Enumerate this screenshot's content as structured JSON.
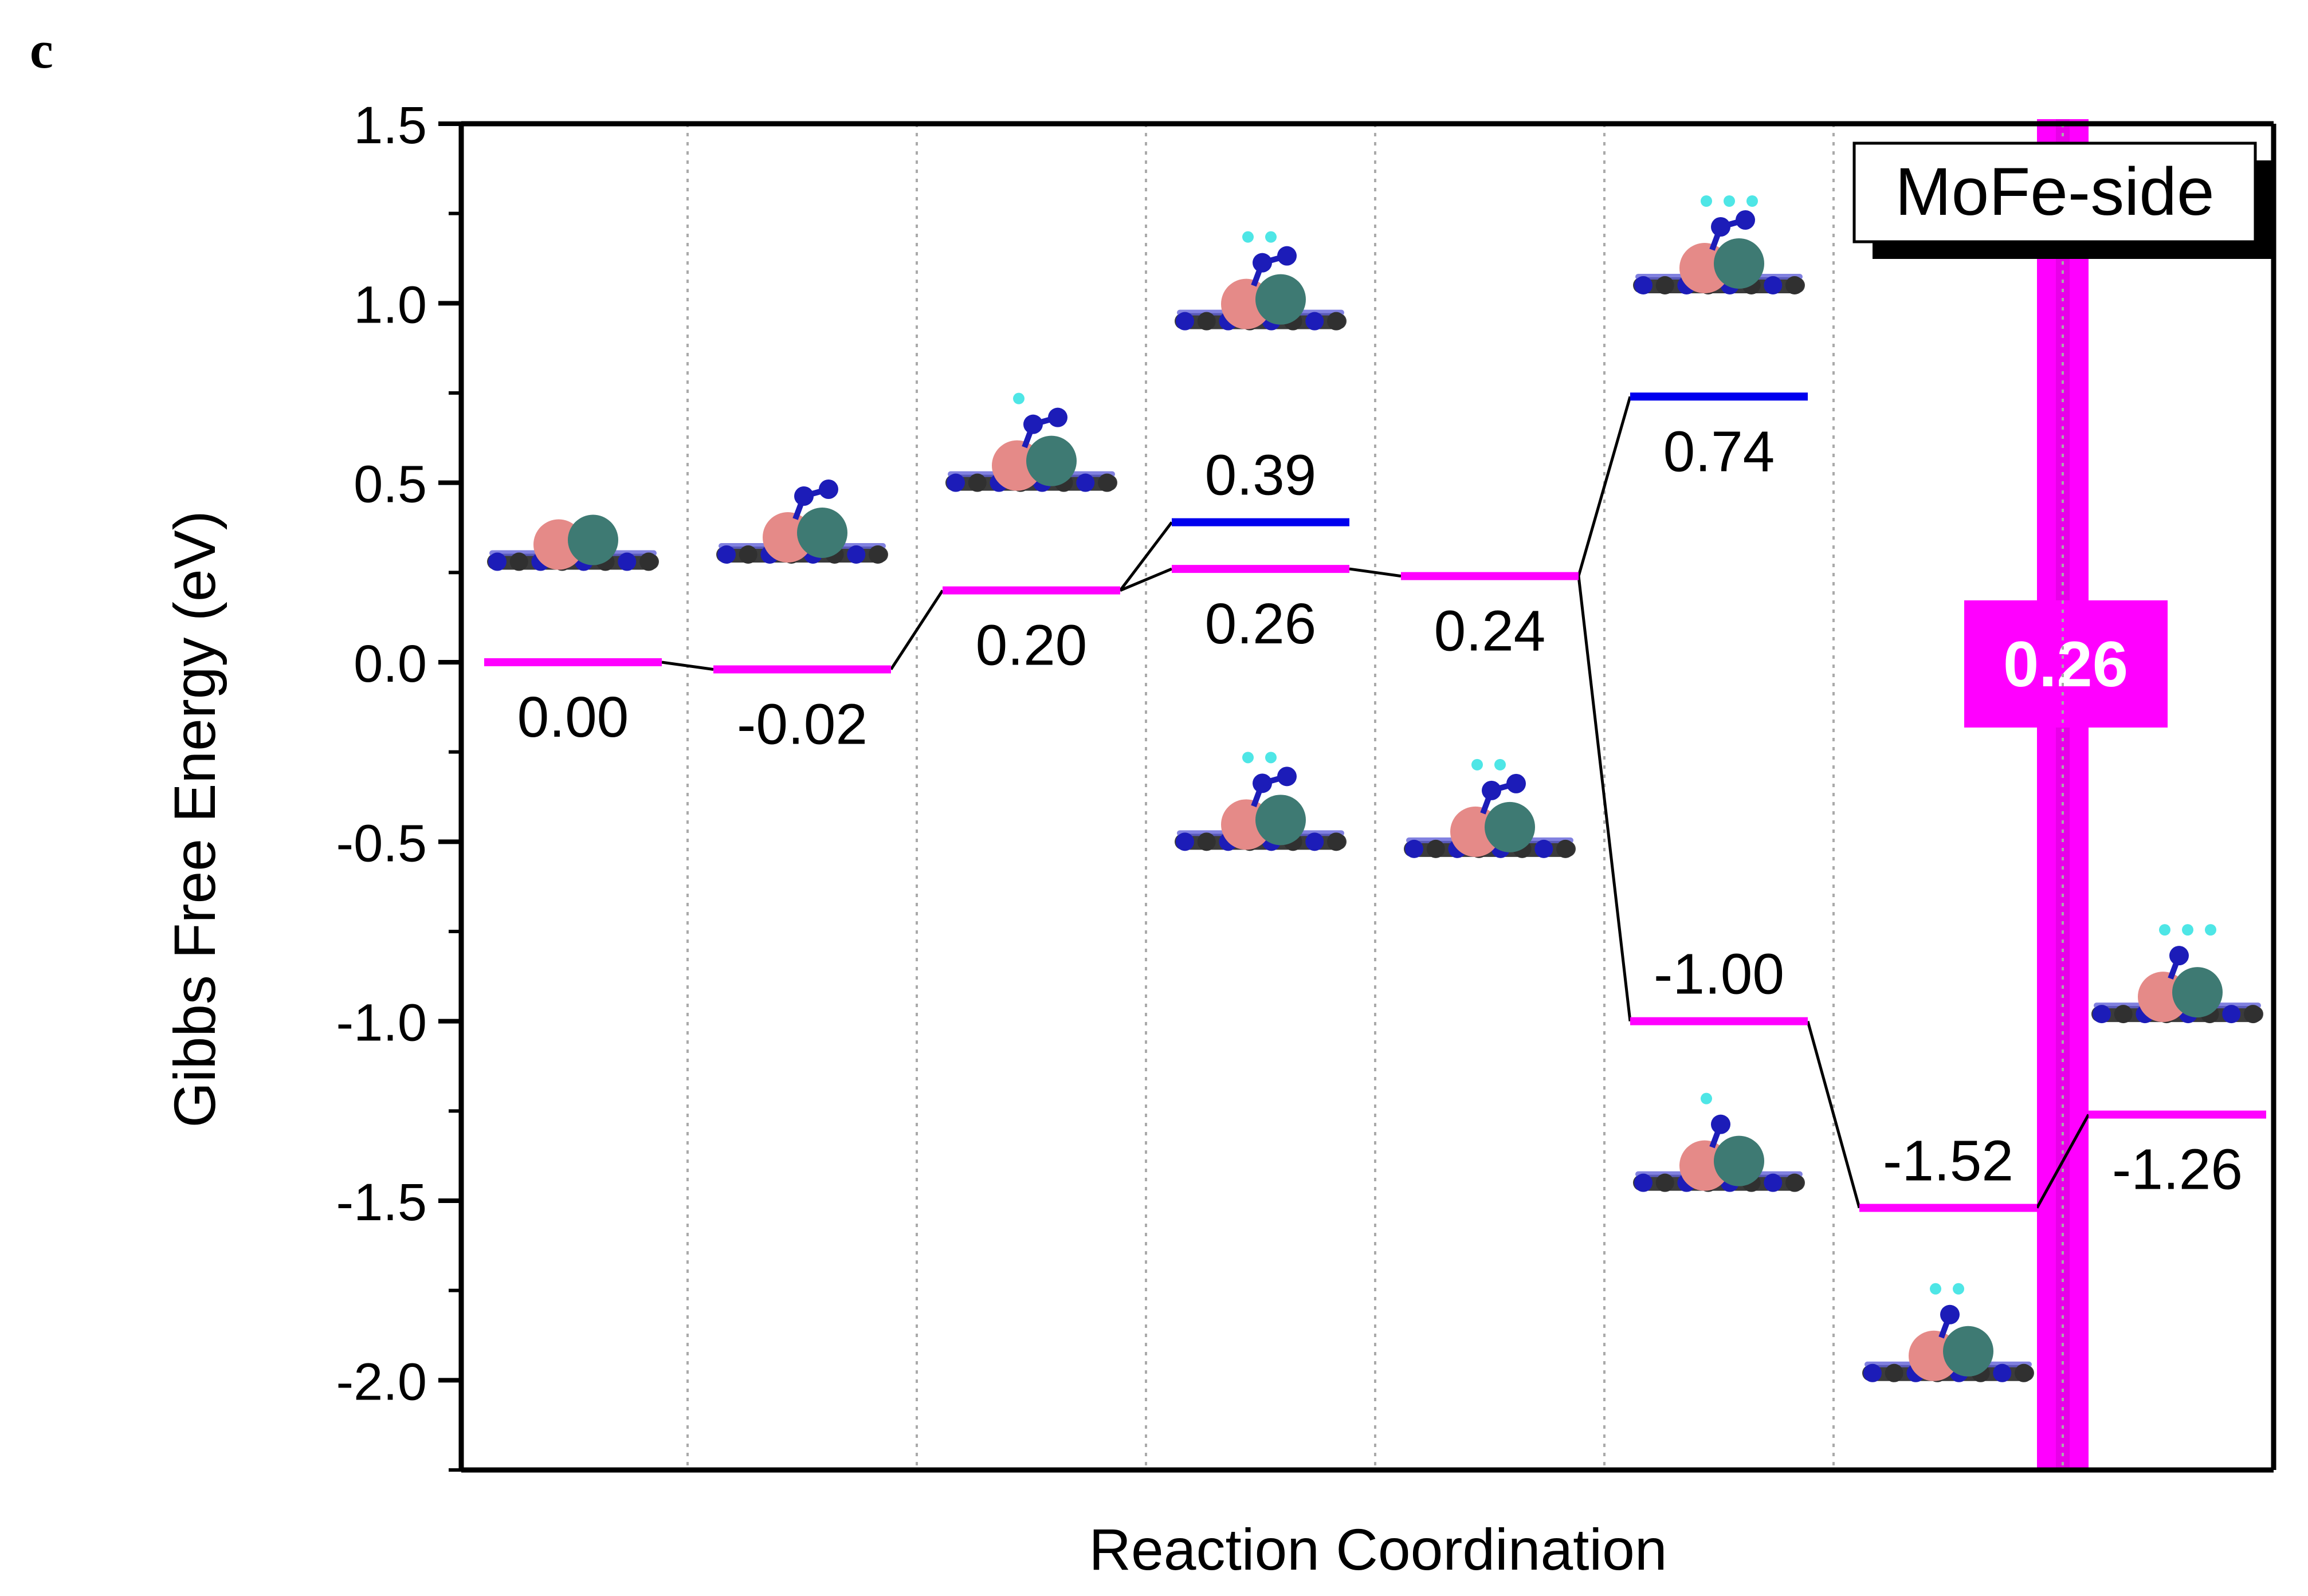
{
  "panel_label": "c",
  "colors": {
    "pink": "#ff00ff",
    "blue": "#0000ee",
    "pink_atom": "#e58a88",
    "teal_atom": "#3e7a73",
    "n_atom": "#1c1cb8",
    "c_atom": "#303030",
    "h_atom": "#4ee6e6"
  },
  "chart_data": {
    "type": "energy-level diagram",
    "title": "",
    "legend": "MoFe-side",
    "xlabel": "Reaction Coordination",
    "ylabel": "Gibbs Free Energy (eV)",
    "ylim": [
      -2.25,
      1.5
    ],
    "yticks": [
      "1.5",
      "1.0",
      "0.5",
      "0.0",
      "-0.5",
      "-1.0",
      "-1.5",
      "-2.0"
    ],
    "ytick_values": [
      1.5,
      1.0,
      0.5,
      0.0,
      -0.5,
      -1.0,
      -1.5,
      -2.0
    ],
    "steps": 8,
    "levels": [
      {
        "step": 1,
        "value": 0.0,
        "label": "0.00",
        "series": "main",
        "label_pos": "below"
      },
      {
        "step": 2,
        "value": -0.02,
        "label": "-0.02",
        "series": "main",
        "label_pos": "below"
      },
      {
        "step": 3,
        "value": 0.2,
        "label": "0.20",
        "series": "main",
        "label_pos": "below"
      },
      {
        "step": 4,
        "value": 0.26,
        "label": "0.26",
        "series": "main",
        "label_pos": "below"
      },
      {
        "step": 4,
        "value": 0.39,
        "label": "0.39",
        "series": "alt",
        "label_pos": "above"
      },
      {
        "step": 5,
        "value": 0.24,
        "label": "0.24",
        "series": "main",
        "label_pos": "below"
      },
      {
        "step": 6,
        "value": 0.74,
        "label": "0.74",
        "series": "alt",
        "label_pos": "below"
      },
      {
        "step": 6,
        "value": -1.0,
        "label": "-1.00",
        "series": "main",
        "label_pos": "above"
      },
      {
        "step": 7,
        "value": -1.52,
        "label": "-1.52",
        "series": "main",
        "label_pos": "above"
      },
      {
        "step": 8,
        "value": -1.26,
        "label": "-1.26",
        "series": "main",
        "label_pos": "below"
      }
    ],
    "connections": [
      [
        0,
        1
      ],
      [
        1,
        2
      ],
      [
        2,
        3
      ],
      [
        2,
        4
      ],
      [
        3,
        5
      ],
      [
        5,
        6
      ],
      [
        5,
        7
      ],
      [
        7,
        8
      ],
      [
        8,
        9
      ]
    ],
    "highlight": {
      "label": "0.26",
      "step_boundary": 7.5
    }
  },
  "structures": [
    {
      "name": "structure-1",
      "step": 1,
      "value": 0.28,
      "adsorbate": "none"
    },
    {
      "name": "structure-2",
      "step": 2,
      "value": 0.3,
      "adsorbate": "N2"
    },
    {
      "name": "structure-3",
      "step": 3,
      "value": 0.5,
      "adsorbate": "N2H"
    },
    {
      "name": "structure-4-upper",
      "step": 4,
      "value": 0.95,
      "adsorbate": "NNH2"
    },
    {
      "name": "structure-4-lower",
      "step": 4,
      "value": -0.5,
      "adsorbate": "NHNH"
    },
    {
      "name": "structure-5",
      "step": 5,
      "value": -0.52,
      "adsorbate": "NHNH"
    },
    {
      "name": "structure-6-upper",
      "step": 6,
      "value": 1.05,
      "adsorbate": "NH2NH"
    },
    {
      "name": "structure-6-lower",
      "step": 6,
      "value": -1.45,
      "adsorbate": "NH"
    },
    {
      "name": "structure-7",
      "step": 7,
      "value": -1.98,
      "adsorbate": "NH2"
    },
    {
      "name": "structure-8",
      "step": 8,
      "value": -0.98,
      "adsorbate": "NH3"
    }
  ]
}
